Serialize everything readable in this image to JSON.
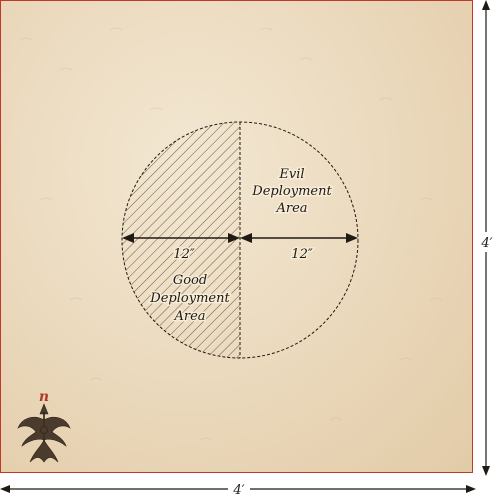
{
  "board": {
    "width_label": "4′",
    "height_label": "4′"
  },
  "zones": {
    "evil": [
      "Evil",
      "Deployment",
      "Area"
    ],
    "good": [
      "Good",
      "Deployment",
      "Area"
    ]
  },
  "measures": {
    "left_radius": "12″",
    "right_radius": "12″"
  },
  "compass": {
    "north": "n"
  },
  "colors": {
    "board_border": "#c0392b",
    "parchment": "#ead8bb",
    "ink": "#1f1a14",
    "compass_n": "#b03a2e"
  }
}
